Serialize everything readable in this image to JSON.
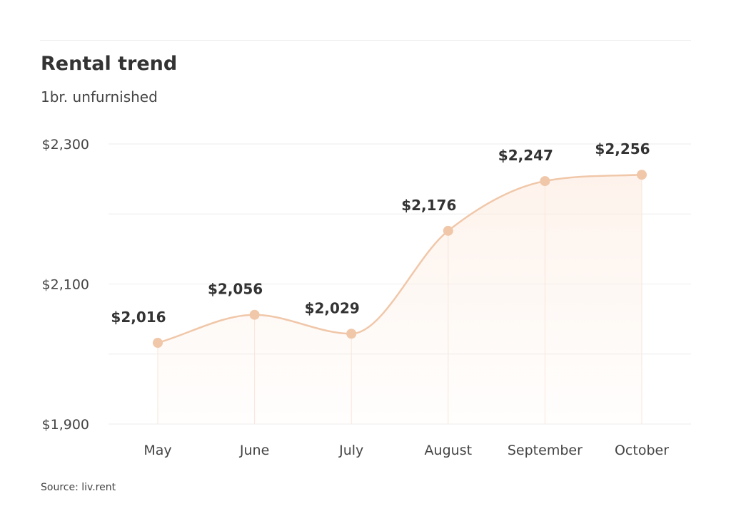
{
  "header": {
    "title": "Rental trend",
    "subtitle": "1br. unfurnished"
  },
  "footer": {
    "source": "Source: liv.rent"
  },
  "colors": {
    "line": "#f0c7a9",
    "marker": "#f0c7a9",
    "fill_top": "#fde9dc",
    "grid": "#eeeeee",
    "text": "#333333"
  },
  "chart_data": {
    "type": "area",
    "categories": [
      "May",
      "June",
      "July",
      "August",
      "September",
      "October"
    ],
    "series": [
      {
        "values": [
          2016,
          2056,
          2029,
          2176,
          2247,
          2256
        ],
        "labels": [
          "$2,016",
          "$2,056",
          "$2,029",
          "$2,176",
          "$2,247",
          "$2,256"
        ]
      }
    ],
    "ylim": [
      1900,
      2300
    ],
    "yticks": [
      1900,
      2100,
      2300
    ],
    "ytick_labels": [
      "$1,900",
      "$2,100",
      "$2,300"
    ],
    "grid": true,
    "legend": "none"
  }
}
